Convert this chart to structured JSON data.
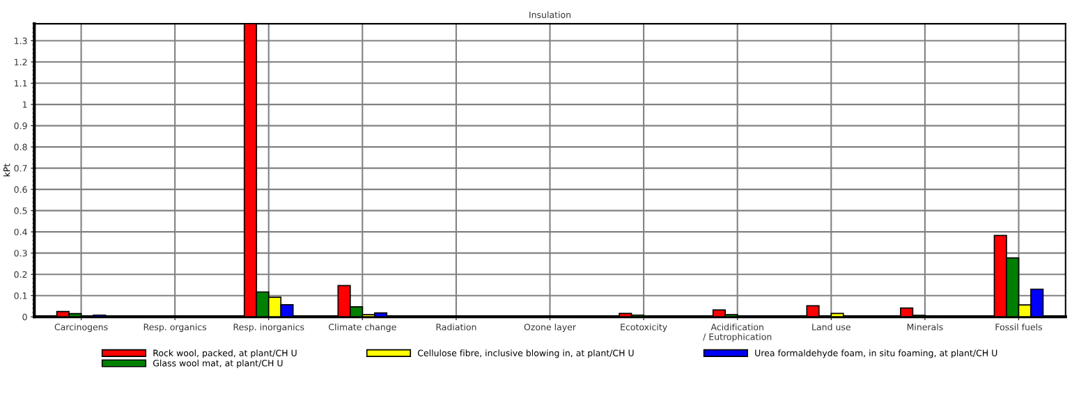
{
  "chart_data": {
    "type": "bar",
    "title": "Insulation",
    "ylabel": "kPt",
    "categories": [
      "Carcinogens",
      "Resp. organics",
      "Resp. inorganics",
      "Climate change",
      "Radiation",
      "Ozone layer",
      "Ecotoxicity",
      "Acidification\n/ Eutrophication",
      "Land use",
      "Minerals",
      "Fossil fuels"
    ],
    "series": [
      {
        "name": "Rock wool, packed, at plant/CH U",
        "color": "#ff0000",
        "values": [
          0.025,
          0.003,
          1.38,
          0.147,
          null,
          0.003,
          0.016,
          0.032,
          0.052,
          0.041,
          0.383
        ]
      },
      {
        "name": "Glass wool mat, at plant/CH U",
        "color": "#008000",
        "values": [
          0.015,
          0.003,
          0.117,
          0.047,
          null,
          0.003,
          0.008,
          0.01,
          null,
          0.007,
          0.277
        ]
      },
      {
        "name": "Cellulose fibre, inclusive blowing in, at plant/CH U",
        "color": "#ffff00",
        "values": [
          null,
          0.003,
          0.092,
          0.01,
          0.003,
          0.003,
          null,
          null,
          0.016,
          0.004,
          0.056
        ]
      },
      {
        "name": "Urea formaldehyde foam, in situ foaming, at plant/CH U",
        "color": "#0000ff",
        "values": [
          0.008,
          0.003,
          0.057,
          0.018,
          0.003,
          0.003,
          null,
          null,
          null,
          null,
          0.13
        ]
      }
    ],
    "ylim": [
      0,
      1.38
    ],
    "yticks": [
      0,
      0.1,
      0.2,
      0.3,
      0.4,
      0.5,
      0.6,
      0.7,
      0.8,
      0.9,
      1,
      1.1,
      1.2,
      1.3
    ],
    "grid": true,
    "legend": "bottom"
  }
}
